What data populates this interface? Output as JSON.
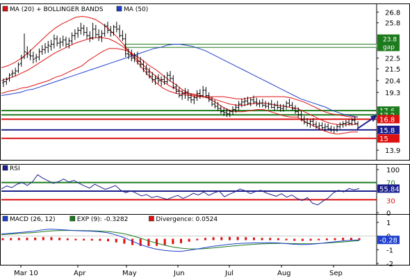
{
  "chart_data": [
    {
      "panel": "price",
      "type": "line",
      "legend": [
        {
          "name": "MA (20) + BOLLINGER BANDS",
          "color": "#dd1111"
        },
        {
          "name": "MA (50)",
          "color": "#1f3fcc"
        }
      ],
      "ylim": [
        13.0,
        27.6
      ],
      "y_ticks": [
        "26.8",
        "25.8",
        "23.8",
        "22.5",
        "21.5",
        "20.4",
        "19.3",
        "17.6",
        "17.2",
        "16.8",
        "15.8",
        "15",
        "13.9"
      ],
      "y_ticks_plain": [
        26.8,
        25.8,
        22.5,
        21.5,
        20.4,
        19.3,
        13.9
      ],
      "price_series": [
        [
          20.2,
          20.6,
          19.8,
          20.3
        ],
        [
          20.3,
          20.7,
          20.0,
          20.5
        ],
        [
          20.6,
          21.1,
          20.3,
          20.9
        ],
        [
          21.0,
          21.4,
          20.7,
          21.1
        ],
        [
          21.1,
          21.6,
          20.8,
          21.3
        ],
        [
          21.3,
          22.1,
          21.1,
          21.9
        ],
        [
          22.0,
          22.8,
          21.7,
          22.5
        ],
        [
          22.6,
          24.8,
          22.4,
          23.1
        ],
        [
          23.0,
          23.6,
          22.5,
          22.9
        ],
        [
          22.8,
          23.3,
          22.3,
          22.7
        ],
        [
          22.7,
          23.1,
          22.0,
          22.4
        ],
        [
          22.5,
          22.9,
          22.1,
          22.6
        ],
        [
          22.6,
          23.4,
          22.3,
          23.1
        ],
        [
          23.1,
          23.7,
          22.8,
          23.3
        ],
        [
          23.3,
          23.9,
          22.9,
          23.5
        ],
        [
          23.5,
          24.1,
          23.0,
          23.7
        ],
        [
          23.6,
          24.2,
          23.2,
          23.8
        ],
        [
          23.8,
          24.7,
          23.4,
          24.3
        ],
        [
          24.3,
          24.6,
          23.6,
          23.9
        ],
        [
          23.9,
          24.4,
          23.4,
          24.0
        ],
        [
          24.0,
          24.6,
          23.6,
          24.2
        ],
        [
          24.2,
          24.5,
          23.5,
          23.8
        ],
        [
          23.8,
          24.4,
          23.4,
          24.1
        ],
        [
          24.1,
          24.9,
          23.8,
          24.6
        ],
        [
          24.6,
          25.2,
          24.2,
          24.8
        ],
        [
          24.8,
          25.4,
          24.4,
          25.1
        ],
        [
          25.1,
          25.8,
          24.7,
          25.3
        ],
        [
          25.3,
          25.6,
          24.6,
          24.9
        ],
        [
          24.9,
          25.4,
          24.3,
          24.6
        ],
        [
          24.6,
          25.0,
          24.0,
          24.4
        ],
        [
          24.4,
          25.8,
          24.2,
          25.2
        ],
        [
          25.2,
          25.6,
          24.4,
          24.7
        ],
        [
          24.7,
          25.2,
          24.1,
          24.5
        ],
        [
          24.5,
          25.1,
          24.0,
          24.8
        ],
        [
          24.8,
          25.7,
          24.5,
          25.5
        ],
        [
          25.5,
          25.9,
          24.8,
          25.1
        ],
        [
          25.1,
          25.5,
          24.5,
          24.9
        ],
        [
          24.9,
          25.6,
          24.6,
          25.4
        ],
        [
          25.4,
          25.9,
          24.9,
          25.2
        ],
        [
          25.2,
          25.6,
          24.4,
          24.6
        ],
        [
          24.6,
          25.1,
          24.1,
          24.3
        ],
        [
          24.3,
          24.8,
          22.6,
          22.9
        ],
        [
          22.9,
          23.4,
          22.4,
          22.8
        ],
        [
          22.8,
          23.3,
          22.2,
          22.5
        ],
        [
          22.5,
          23.0,
          22.1,
          22.7
        ],
        [
          22.7,
          23.1,
          21.9,
          22.2
        ],
        [
          22.2,
          22.6,
          21.6,
          21.9
        ],
        [
          21.9,
          22.3,
          21.2,
          21.5
        ],
        [
          21.5,
          21.9,
          20.9,
          21.2
        ],
        [
          21.2,
          21.6,
          20.6,
          20.8
        ],
        [
          20.8,
          21.2,
          20.2,
          20.5
        ],
        [
          20.5,
          20.9,
          20.0,
          20.6
        ],
        [
          20.6,
          21.0,
          20.1,
          20.4
        ],
        [
          20.4,
          20.8,
          19.9,
          20.5
        ],
        [
          20.5,
          20.9,
          20.0,
          20.3
        ],
        [
          20.3,
          21.2,
          20.1,
          20.9
        ],
        [
          20.9,
          21.3,
          20.3,
          20.6
        ],
        [
          20.6,
          20.9,
          19.6,
          19.8
        ],
        [
          19.8,
          20.1,
          19.2,
          19.4
        ],
        [
          19.4,
          19.8,
          18.8,
          19.0
        ],
        [
          19.0,
          19.5,
          18.6,
          19.2
        ],
        [
          19.2,
          19.7,
          18.7,
          19.3
        ],
        [
          19.3,
          19.6,
          18.5,
          18.8
        ],
        [
          18.8,
          19.2,
          18.3,
          18.6
        ],
        [
          18.6,
          19.0,
          18.2,
          18.8
        ],
        [
          18.8,
          19.5,
          18.5,
          19.2
        ],
        [
          19.2,
          19.6,
          18.7,
          19.0
        ],
        [
          19.0,
          19.9,
          18.8,
          19.5
        ],
        [
          19.5,
          19.8,
          18.8,
          19.0
        ],
        [
          19.0,
          19.3,
          18.4,
          18.6
        ],
        [
          18.6,
          18.9,
          18.0,
          18.2
        ],
        [
          18.2,
          18.6,
          17.8,
          18.0
        ],
        [
          18.0,
          18.4,
          17.6,
          17.8
        ],
        [
          17.8,
          18.1,
          17.3,
          17.5
        ],
        [
          17.5,
          17.9,
          17.1,
          17.4
        ],
        [
          17.4,
          17.8,
          17.0,
          17.3
        ],
        [
          17.3,
          17.7,
          17.0,
          17.5
        ],
        [
          17.5,
          18.0,
          17.2,
          17.7
        ],
        [
          17.7,
          18.2,
          17.4,
          17.9
        ],
        [
          17.9,
          18.5,
          17.6,
          18.2
        ],
        [
          18.2,
          18.7,
          17.9,
          18.4
        ],
        [
          18.4,
          18.8,
          18.0,
          18.5
        ],
        [
          18.5,
          18.9,
          18.1,
          18.3
        ],
        [
          18.3,
          18.8,
          18.0,
          18.6
        ],
        [
          18.6,
          19.0,
          18.2,
          18.4
        ],
        [
          18.4,
          18.8,
          18.0,
          18.2
        ],
        [
          18.2,
          18.6,
          17.9,
          18.3
        ],
        [
          18.3,
          18.7,
          17.9,
          18.1
        ],
        [
          18.1,
          18.5,
          17.8,
          18.0
        ],
        [
          18.0,
          18.4,
          17.7,
          18.2
        ],
        [
          18.2,
          18.6,
          17.8,
          17.9
        ],
        [
          17.9,
          18.3,
          17.6,
          18.1
        ],
        [
          18.1,
          18.5,
          17.7,
          17.9
        ],
        [
          17.9,
          18.2,
          17.5,
          17.8
        ],
        [
          17.8,
          18.2,
          17.5,
          18.0
        ],
        [
          18.0,
          18.5,
          17.7,
          18.3
        ],
        [
          18.3,
          18.7,
          17.9,
          18.1
        ],
        [
          18.1,
          18.4,
          17.6,
          17.8
        ],
        [
          17.8,
          18.1,
          17.3,
          17.5
        ],
        [
          17.5,
          17.9,
          17.0,
          17.2
        ],
        [
          17.2,
          17.6,
          16.6,
          16.8
        ],
        [
          16.8,
          17.1,
          16.3,
          16.5
        ],
        [
          16.5,
          16.9,
          16.1,
          16.4
        ],
        [
          16.4,
          16.8,
          16.0,
          16.6
        ],
        [
          16.6,
          16.9,
          16.1,
          16.3
        ],
        [
          16.3,
          16.6,
          15.9,
          16.1
        ],
        [
          16.1,
          16.5,
          15.8,
          16.2
        ],
        [
          16.2,
          16.5,
          15.8,
          16.0
        ],
        [
          16.0,
          16.4,
          15.7,
          16.1
        ],
        [
          16.1,
          16.4,
          15.8,
          15.9
        ],
        [
          15.9,
          16.2,
          15.6,
          15.8
        ],
        [
          15.8,
          16.1,
          15.5,
          15.8
        ],
        [
          15.8,
          16.3,
          15.6,
          16.1
        ],
        [
          16.1,
          16.5,
          15.9,
          16.3
        ],
        [
          16.3,
          16.6,
          16.0,
          16.4
        ],
        [
          16.4,
          16.7,
          16.1,
          16.5
        ],
        [
          16.5,
          16.8,
          16.2,
          16.4
        ],
        [
          16.4,
          16.9,
          16.2,
          16.7
        ],
        [
          16.7,
          17.0,
          16.3,
          16.4
        ],
        [
          16.4,
          16.6,
          15.9,
          16.0
        ]
      ],
      "ma50_series": [
        19.0,
        19.1,
        19.2,
        19.3,
        19.5,
        19.6,
        19.8,
        20.0,
        20.2,
        20.4,
        20.6,
        20.8,
        21.0,
        21.2,
        21.4,
        21.6,
        21.8,
        22.0,
        22.2,
        22.4,
        22.6,
        22.8,
        23.0,
        23.2,
        23.4,
        23.5,
        23.7,
        23.8,
        23.8,
        23.7,
        23.6,
        23.4,
        23.2,
        22.9,
        22.6,
        22.3,
        22.0,
        21.7,
        21.4,
        21.1,
        20.8,
        20.5,
        20.2,
        19.9,
        19.6,
        19.3,
        19.0,
        18.7,
        18.5,
        18.3,
        18.1,
        17.9,
        17.6,
        17.4,
        17.2,
        17.1,
        17.0
      ],
      "bb_mid_series": [
        20.4,
        20.6,
        20.8,
        21.1,
        21.4,
        21.8,
        22.2,
        22.6,
        23.0,
        23.3,
        23.6,
        23.9,
        24.1,
        24.3,
        24.4,
        24.4,
        24.3,
        24.0,
        23.6,
        23.1,
        22.5,
        21.9,
        21.3,
        20.8,
        20.3,
        19.9,
        19.6,
        19.3,
        19.1,
        19.0,
        18.9,
        18.8,
        18.6,
        18.4,
        18.2,
        18.1,
        18.1,
        18.2,
        18.3,
        18.3,
        18.2,
        18.1,
        18.0,
        17.9,
        17.8,
        17.5,
        17.2,
        16.9,
        16.6,
        16.4,
        16.3,
        16.3,
        16.3,
        16.3
      ],
      "bb_upper_series": [
        21.6,
        21.8,
        22.1,
        22.5,
        23.0,
        23.6,
        24.2,
        24.8,
        25.3,
        25.7,
        26.0,
        26.3,
        26.4,
        26.3,
        26.1,
        25.7,
        25.2,
        24.6,
        23.9,
        23.1,
        22.3,
        21.5,
        20.8,
        20.2,
        19.7,
        19.4,
        19.2,
        19.1,
        19.0,
        18.9,
        18.9,
        18.9,
        18.9,
        18.9,
        18.8,
        18.7,
        18.7,
        18.8,
        18.9,
        18.9,
        18.9,
        18.9,
        18.9,
        18.8,
        18.6,
        18.4,
        18.1,
        17.8,
        17.5,
        17.3,
        17.2,
        17.1,
        17.0,
        17.0
      ],
      "bb_lower_series": [
        19.2,
        19.4,
        19.5,
        19.7,
        19.8,
        20.0,
        20.2,
        20.4,
        20.7,
        20.9,
        21.2,
        21.5,
        21.8,
        22.3,
        22.7,
        23.1,
        23.4,
        23.4,
        23.3,
        23.1,
        22.7,
        22.3,
        21.8,
        21.4,
        20.9,
        20.4,
        20.0,
        19.5,
        19.2,
        19.1,
        18.9,
        18.7,
        18.3,
        17.9,
        17.6,
        17.5,
        17.5,
        17.6,
        17.7,
        17.7,
        17.5,
        17.3,
        17.1,
        17.0,
        17.0,
        16.6,
        16.3,
        16.0,
        15.7,
        15.5,
        15.4,
        15.5,
        15.6,
        15.6
      ],
      "horizontal_lines": [
        {
          "value": 17.6,
          "color": "#1d7a1d",
          "label": "17.6"
        },
        {
          "value": 17.2,
          "color": "#1d7a1d",
          "label": "17.2"
        },
        {
          "value": 16.8,
          "color": "#dd1111",
          "label": "16.8"
        },
        {
          "value": 15.8,
          "color": "#1c1f8c",
          "label": "15.8"
        },
        {
          "value": 15.0,
          "color": "#dd1111",
          "label": "15"
        }
      ],
      "gap": {
        "from": 23.5,
        "to": 23.8,
        "color": "#1d7a1d",
        "labels": [
          "23.8",
          "gap"
        ]
      },
      "arrow_color": "#1c1f8c"
    },
    {
      "panel": "rsi",
      "type": "line",
      "legend": [
        {
          "name": "RSI",
          "color": "#1c1f8c"
        }
      ],
      "ylim": [
        0,
        100
      ],
      "y_ticks": [
        "100",
        "70",
        "50",
        "30",
        "0"
      ],
      "y_ticks_plain": [
        100,
        0
      ],
      "levels": [
        {
          "value": 70,
          "color": "#1d7a1d"
        },
        {
          "value": 50,
          "color": "#1c1f8c"
        },
        {
          "value": 30,
          "color": "#dd1111"
        }
      ],
      "value_label": "55.84",
      "series": [
        55,
        62,
        58,
        66,
        70,
        63,
        72,
        88,
        80,
        74,
        68,
        72,
        78,
        71,
        75,
        68,
        62,
        57,
        66,
        60,
        54,
        58,
        63,
        52,
        46,
        51,
        45,
        39,
        42,
        35,
        38,
        34,
        31,
        36,
        40,
        33,
        38,
        45,
        41,
        48,
        40,
        46,
        50,
        37,
        43,
        48,
        55,
        51,
        44,
        49,
        52,
        46,
        42,
        38,
        44,
        36,
        41,
        33,
        28,
        35,
        22,
        18,
        27,
        34,
        46,
        52,
        48,
        56,
        53,
        55.8
      ]
    },
    {
      "panel": "macd",
      "type": "line",
      "legend": [
        {
          "name": "MACD (26, 12)",
          "color": "#1f3fcc"
        },
        {
          "name": "EXP (9): -0.3282",
          "color": "#1d7a1d"
        },
        {
          "name": "Divergence: 0.0524",
          "color": "#dd1111"
        }
      ],
      "ylim": [
        -2,
        1
      ],
      "y_ticks": [
        "1",
        "0",
        "-1",
        "-2"
      ],
      "y_ticks_plain": [
        1,
        0,
        -1,
        -2
      ],
      "value_label": "-0.28",
      "macd_series": [
        0.15,
        0.2,
        0.25,
        0.3,
        0.35,
        0.45,
        0.5,
        0.48,
        0.44,
        0.4,
        0.38,
        0.36,
        0.32,
        0.25,
        0.1,
        -0.1,
        -0.35,
        -0.6,
        -0.8,
        -0.95,
        -1.05,
        -1.1,
        -1.12,
        -1.05,
        -0.95,
        -0.85,
        -0.75,
        -0.68,
        -0.6,
        -0.55,
        -0.52,
        -0.5,
        -0.5,
        -0.48,
        -0.5,
        -0.55,
        -0.6,
        -0.62,
        -0.6,
        -0.55,
        -0.48,
        -0.42,
        -0.35,
        -0.3,
        -0.28
      ],
      "signal_series": [
        0.1,
        0.14,
        0.18,
        0.22,
        0.26,
        0.32,
        0.37,
        0.4,
        0.41,
        0.41,
        0.4,
        0.39,
        0.37,
        0.34,
        0.28,
        0.18,
        0.04,
        -0.14,
        -0.33,
        -0.5,
        -0.66,
        -0.79,
        -0.88,
        -0.93,
        -0.94,
        -0.92,
        -0.87,
        -0.81,
        -0.75,
        -0.7,
        -0.65,
        -0.6,
        -0.57,
        -0.55,
        -0.54,
        -0.54,
        -0.55,
        -0.56,
        -0.56,
        -0.54,
        -0.51,
        -0.47,
        -0.43,
        -0.38,
        -0.33
      ],
      "divergence_series": [
        0.05,
        0.06,
        0.07,
        0.08,
        0.09,
        0.13,
        0.13,
        0.08,
        0.03,
        -0.01,
        -0.02,
        -0.03,
        -0.05,
        -0.09,
        -0.18,
        -0.28,
        -0.39,
        -0.46,
        -0.47,
        -0.45,
        -0.39,
        -0.31,
        -0.24,
        -0.12,
        -0.01,
        0.07,
        0.12,
        0.13,
        0.15,
        0.15,
        0.13,
        0.1,
        0.07,
        0.07,
        0.04,
        -0.01,
        -0.05,
        -0.06,
        -0.04,
        -0.01,
        0.03,
        0.05,
        0.08,
        0.08,
        0.05
      ]
    }
  ],
  "x_axis": {
    "labels": [
      "Mar 10",
      "Apr",
      "May",
      "Jun",
      "Jul",
      "Aug",
      "Sep"
    ]
  }
}
